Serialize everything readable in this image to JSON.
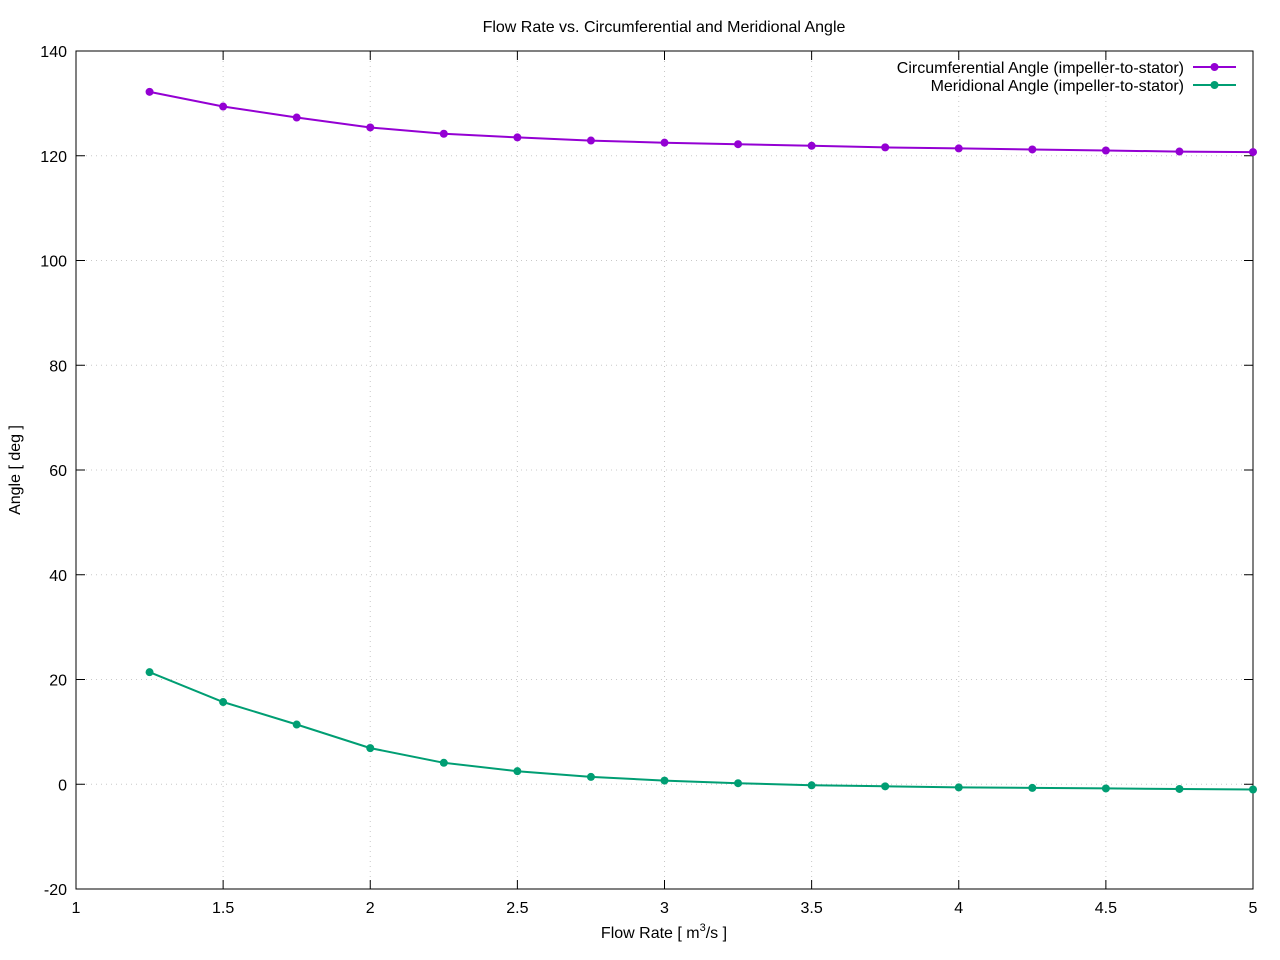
{
  "chart_data": {
    "type": "line",
    "title": "Flow Rate vs. Circumferential and Meridional Angle",
    "xlabel_prefix": "Flow Rate [ m",
    "xlabel_sup": "3",
    "xlabel_suffix": "/s ]",
    "ylabel": "Angle [ deg ]",
    "xlim": [
      1,
      5
    ],
    "ylim": [
      -20,
      140
    ],
    "xticks": [
      1,
      1.5,
      2,
      2.5,
      3,
      3.5,
      4,
      4.5,
      5
    ],
    "yticks": [
      -20,
      0,
      20,
      40,
      60,
      80,
      100,
      120,
      140
    ],
    "grid": true,
    "legend_position": "top-right",
    "series": [
      {
        "name": "Circumferential Angle (impeller-to-stator)",
        "color": "#9400d3",
        "x": [
          1.25,
          1.5,
          1.75,
          2,
          2.25,
          2.5,
          2.75,
          3,
          3.25,
          3.5,
          3.75,
          4,
          4.25,
          4.5,
          4.75,
          5
        ],
        "y": [
          132.2,
          129.4,
          127.3,
          125.4,
          124.2,
          123.5,
          122.9,
          122.5,
          122.2,
          121.9,
          121.6,
          121.4,
          121.2,
          121.0,
          120.8,
          120.7
        ]
      },
      {
        "name": "Meridional Angle (impeller-to-stator)",
        "color": "#009e73",
        "x": [
          1.25,
          1.5,
          1.75,
          2,
          2.25,
          2.5,
          2.75,
          3,
          3.25,
          3.5,
          3.75,
          4,
          4.25,
          4.5,
          4.75,
          5
        ],
        "y": [
          21.4,
          15.7,
          11.4,
          6.9,
          4.1,
          2.5,
          1.4,
          0.7,
          0.2,
          -0.2,
          -0.4,
          -0.6,
          -0.7,
          -0.8,
          -0.9,
          -1.0
        ]
      }
    ]
  }
}
